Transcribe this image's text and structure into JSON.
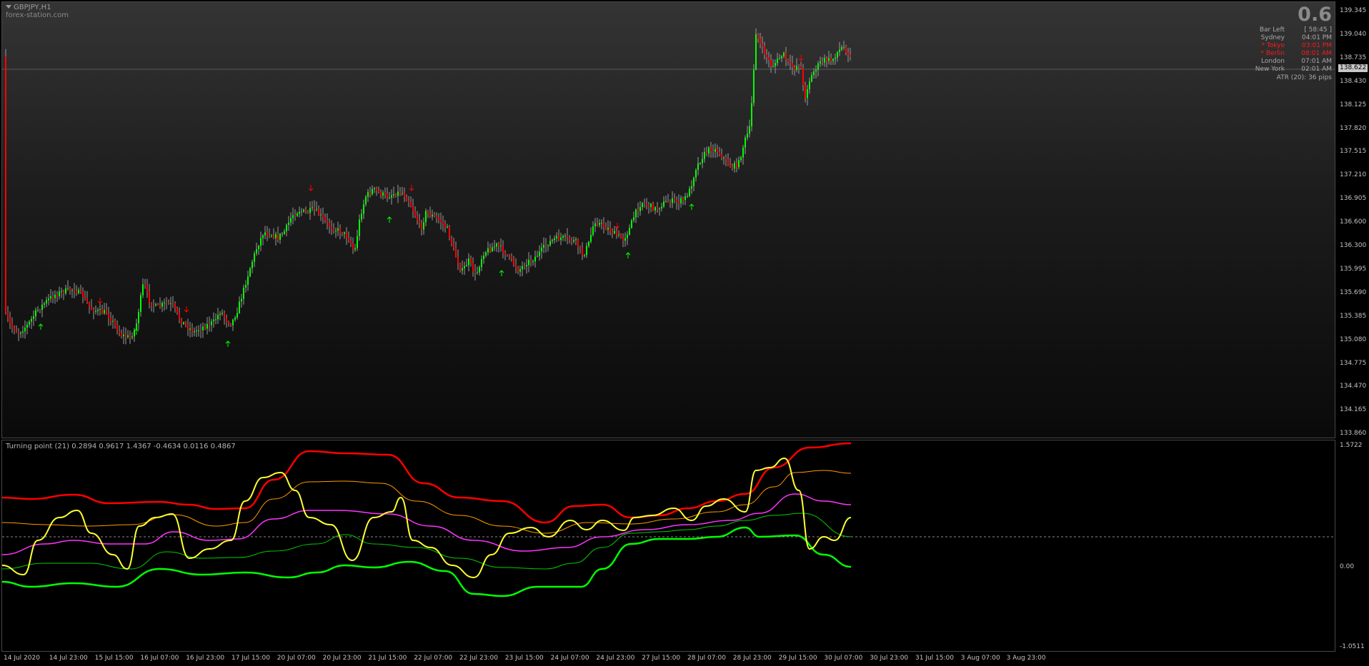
{
  "chart": {
    "symbol": "GBPJPY,H1",
    "source": "forex-station.com",
    "spread": "0.6",
    "info": {
      "rows": [
        {
          "label": "Bar Left",
          "value": "[ 58:45 ]",
          "color": "gray"
        },
        {
          "label": "Sydney",
          "value": "04:01 PM",
          "color": "gray"
        },
        {
          "label": "* Tokyo",
          "value": "03:01 PM",
          "color": "red"
        },
        {
          "label": "* Berlin",
          "value": "08:01 AM",
          "color": "red"
        },
        {
          "label": "London",
          "value": "07:01 AM",
          "color": "gray"
        },
        {
          "label": "New York",
          "value": "02:01 AM",
          "color": "gray"
        }
      ],
      "atr": "ATR (20): 36 pips"
    },
    "current_price": "138.622",
    "price_axis": [
      "139.345",
      "139.040",
      "138.735",
      "138.430",
      "138.125",
      "137.820",
      "137.515",
      "137.210",
      "136.905",
      "136.600",
      "136.300",
      "135.995",
      "135.690",
      "135.385",
      "135.080",
      "134.775",
      "134.470",
      "134.165",
      "133.860"
    ],
    "time_axis": [
      "14 Jul 2020",
      "14 Jul 23:00",
      "15 Jul 15:00",
      "16 Jul 07:00",
      "16 Jul 23:00",
      "17 Jul 15:00",
      "20 Jul 07:00",
      "20 Jul 23:00",
      "21 Jul 15:00",
      "22 Jul 07:00",
      "22 Jul 23:00",
      "23 Jul 15:00",
      "24 Jul 07:00",
      "24 Jul 23:00",
      "27 Jul 15:00",
      "28 Jul 07:00",
      "28 Jul 23:00",
      "29 Jul 15:00",
      "30 Jul 07:00",
      "30 Jul 23:00",
      "31 Jul 15:00",
      "3 Aug 07:00",
      "3 Aug 23:00"
    ],
    "colors": {
      "bull": "#00ff00",
      "bear": "#ff0000",
      "wick": "#9a9a9a",
      "background": "#000000"
    }
  },
  "indicator": {
    "label": "Turning point (21) 0.2894 0.9617 1.4367 -0.4634 0.0116 0.4867",
    "axis": [
      "1.5722",
      "0.00",
      "-1.0511"
    ],
    "colors": {
      "upper": "#ff0000",
      "lower": "#00ff00",
      "signal": "#ffff33",
      "mid": "#ff33ff",
      "upper_mid": "#ff9900",
      "lower_mid": "#00cc00",
      "zero": "#8a8a8a"
    }
  }
}
